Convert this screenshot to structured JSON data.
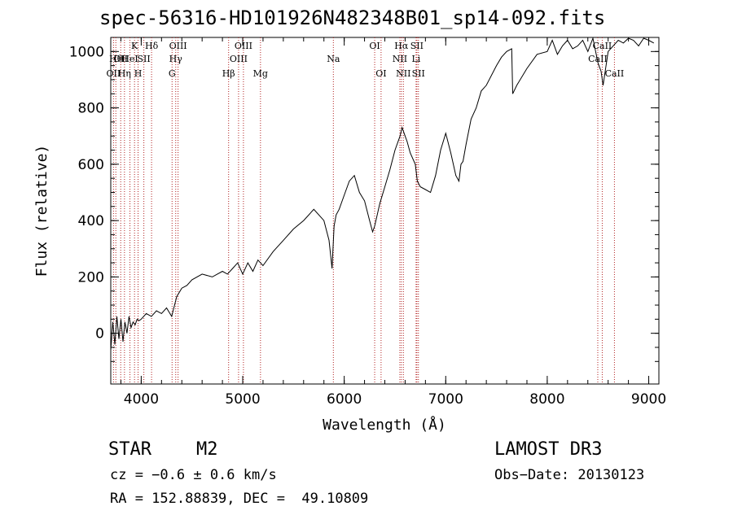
{
  "chart_data": {
    "type": "line",
    "title": "spec-56316-HD101926N482348B01_sp14-092.fits",
    "xlabel": "Wavelength (Å)",
    "ylabel": "Flux (relative)",
    "xlim": [
      3700,
      9100
    ],
    "ylim": [
      -180,
      1050
    ],
    "xticks": [
      4000,
      5000,
      6000,
      7000,
      8000,
      9000
    ],
    "yticks": [
      0,
      200,
      400,
      600,
      800,
      1000
    ],
    "x_tick_labels": [
      "4000",
      "5000",
      "6000",
      "7000",
      "8000",
      "9000"
    ],
    "y_tick_labels": [
      "0",
      "200",
      "400",
      "600",
      "800",
      "1000"
    ],
    "line_color": "#000000",
    "marker_color": "#b22222",
    "series": [
      {
        "name": "flux",
        "x": [
          3700,
          3720,
          3740,
          3760,
          3780,
          3800,
          3820,
          3840,
          3860,
          3880,
          3900,
          3920,
          3940,
          3960,
          3980,
          4000,
          4050,
          4100,
          4150,
          4200,
          4250,
          4300,
          4350,
          4400,
          4450,
          4500,
          4600,
          4700,
          4800,
          4850,
          4900,
          4950,
          5000,
          5050,
          5100,
          5150,
          5200,
          5300,
          5400,
          5500,
          5600,
          5700,
          5800,
          5850,
          5880,
          5900,
          5920,
          5950,
          6000,
          6050,
          6100,
          6150,
          6200,
          6250,
          6280,
          6300,
          6350,
          6400,
          6450,
          6500,
          6550,
          6570,
          6600,
          6620,
          6650,
          6700,
          6720,
          6750,
          6800,
          6850,
          6900,
          6950,
          7000,
          7050,
          7100,
          7130,
          7150,
          7170,
          7200,
          7250,
          7300,
          7350,
          7400,
          7500,
          7550,
          7600,
          7650,
          7660,
          7700,
          7800,
          7900,
          8000,
          8050,
          8100,
          8150,
          8200,
          8250,
          8300,
          8350,
          8400,
          8450,
          8500,
          8530,
          8550,
          8600,
          8650,
          8700,
          8750,
          8800,
          8850,
          8900,
          8950,
          9000,
          9050
        ],
        "y": [
          -60,
          40,
          -40,
          60,
          -20,
          50,
          -30,
          40,
          0,
          60,
          20,
          40,
          30,
          50,
          45,
          50,
          70,
          60,
          80,
          70,
          90,
          60,
          130,
          160,
          170,
          190,
          210,
          200,
          220,
          210,
          230,
          250,
          210,
          250,
          220,
          260,
          240,
          290,
          330,
          370,
          400,
          440,
          400,
          330,
          230,
          380,
          420,
          440,
          490,
          540,
          560,
          500,
          470,
          400,
          360,
          380,
          460,
          520,
          580,
          650,
          700,
          730,
          700,
          680,
          640,
          600,
          540,
          520,
          510,
          500,
          560,
          650,
          710,
          640,
          560,
          540,
          600,
          610,
          670,
          760,
          800,
          860,
          880,
          950,
          980,
          1000,
          1010,
          850,
          880,
          940,
          990,
          1000,
          1040,
          990,
          1020,
          1040,
          1010,
          1020,
          1040,
          1000,
          1050,
          960,
          930,
          880,
          1000,
          1020,
          1040,
          1030,
          1060,
          1040,
          1020,
          1050,
          1040,
          1030
        ]
      }
    ],
    "lines": [
      {
        "x": 3727,
        "label": "OII",
        "row": 2
      },
      {
        "x": 3750,
        "label": "Hθ",
        "row": 1
      },
      {
        "x": 3798,
        "label": "OII",
        "row": 1
      },
      {
        "x": 3835,
        "label": "Hη",
        "row": 2
      },
      {
        "x": 3889,
        "label": "HeI",
        "row": 1
      },
      {
        "x": 3934,
        "label": "K",
        "row": 0
      },
      {
        "x": 3969,
        "label": "H",
        "row": 2
      },
      {
        "x": 4026,
        "label": "SII",
        "row": 1
      },
      {
        "x": 4102,
        "label": "Hδ",
        "row": 0
      },
      {
        "x": 4304,
        "label": "G",
        "row": 2
      },
      {
        "x": 4340,
        "label": "Hγ",
        "row": 1
      },
      {
        "x": 4363,
        "label": "OIII",
        "row": 0
      },
      {
        "x": 4861,
        "label": "Hβ",
        "row": 2
      },
      {
        "x": 4959,
        "label": "OIII",
        "row": 1
      },
      {
        "x": 5007,
        "label": "OIII",
        "row": 0
      },
      {
        "x": 5175,
        "label": "Mg",
        "row": 2
      },
      {
        "x": 5893,
        "label": "Na",
        "row": 1
      },
      {
        "x": 6300,
        "label": "OI",
        "row": 0
      },
      {
        "x": 6363,
        "label": "OI",
        "row": 2
      },
      {
        "x": 6548,
        "label": "NII",
        "row": 1
      },
      {
        "x": 6563,
        "label": "Hα",
        "row": 0
      },
      {
        "x": 6583,
        "label": "NII",
        "row": 2
      },
      {
        "x": 6708,
        "label": "Li",
        "row": 1
      },
      {
        "x": 6716,
        "label": "SII",
        "row": 0
      },
      {
        "x": 6731,
        "label": "SII",
        "row": 2
      },
      {
        "x": 8498,
        "label": "CaII",
        "row": 1
      },
      {
        "x": 8542,
        "label": "CaII",
        "row": 0
      },
      {
        "x": 8662,
        "label": "CaII",
        "row": 2
      }
    ]
  },
  "info": {
    "class_label": "STAR",
    "subclass": "M2",
    "survey": "LAMOST DR3",
    "velocity": "cz = −0.6 ± 0.6 km/s",
    "obs_date": "Obs−Date: 20130123",
    "coords": "RA = 152.88839, DEC =  49.10809"
  }
}
